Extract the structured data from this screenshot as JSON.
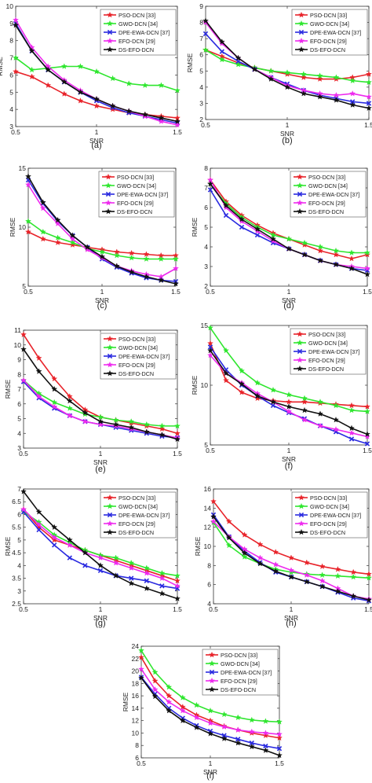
{
  "legend_names": [
    "PSO-DCN [33]",
    "GWO-DCN [34]",
    "DPE-EWA-DCN [37]",
    "EFO-DCN [29]",
    "DS-EFO-DCN"
  ],
  "colors": [
    "#e8232a",
    "#2ee62e",
    "#2a2ae0",
    "#ee2aee",
    "#111111"
  ],
  "markers": [
    "star",
    "star",
    "cross",
    "star",
    "star"
  ],
  "chart_data": [
    {
      "type": "line",
      "caption": "(a)",
      "xlabel": "SNR",
      "ylabel": "RMSE",
      "xlim": [
        0.5,
        1.5
      ],
      "ylim": [
        3,
        10
      ],
      "xticks": [
        0.5,
        1,
        1.5
      ],
      "yticks": [
        3,
        4,
        5,
        6,
        7,
        8,
        9,
        10
      ],
      "x": [
        0.5,
        0.6,
        0.7,
        0.8,
        0.9,
        1.0,
        1.1,
        1.2,
        1.3,
        1.4,
        1.5
      ],
      "series": [
        {
          "name": "PSO-DCN [33]",
          "values": [
            6.2,
            5.9,
            5.4,
            4.9,
            4.5,
            4.2,
            4.0,
            3.8,
            3.7,
            3.6,
            3.5
          ]
        },
        {
          "name": "GWO-DCN [34]",
          "values": [
            7.0,
            6.3,
            6.4,
            6.5,
            6.5,
            6.2,
            5.8,
            5.5,
            5.4,
            5.4,
            5.1
          ]
        },
        {
          "name": "DPE-EWA-DCN [37]",
          "values": [
            9.0,
            7.4,
            6.3,
            5.6,
            5.0,
            4.5,
            4.1,
            3.8,
            3.6,
            3.4,
            3.2
          ]
        },
        {
          "name": "EFO-DCN [29]",
          "values": [
            9.2,
            7.6,
            6.5,
            5.7,
            5.1,
            4.6,
            4.2,
            3.9,
            3.6,
            3.3,
            3.1
          ]
        },
        {
          "name": "DS-EFO-DCN",
          "values": [
            8.9,
            7.4,
            6.3,
            5.6,
            5.0,
            4.6,
            4.2,
            3.9,
            3.7,
            3.5,
            3.3
          ]
        }
      ]
    },
    {
      "type": "line",
      "caption": "(b)",
      "xlabel": "SNR",
      "ylabel": "RMSE",
      "xlim": [
        0.5,
        1.5
      ],
      "ylim": [
        2,
        9
      ],
      "xticks": [
        0.5,
        1,
        1.5
      ],
      "yticks": [
        2,
        3,
        4,
        5,
        6,
        7,
        8,
        9
      ],
      "x": [
        0.5,
        0.6,
        0.7,
        0.8,
        0.9,
        1.0,
        1.1,
        1.2,
        1.3,
        1.4,
        1.5
      ],
      "series": [
        {
          "name": "PSO-DCN [33]",
          "values": [
            6.3,
            5.9,
            5.5,
            5.2,
            5.0,
            4.8,
            4.6,
            4.5,
            4.5,
            4.6,
            4.8
          ]
        },
        {
          "name": "GWO-DCN [34]",
          "values": [
            6.3,
            5.7,
            5.4,
            5.2,
            5.0,
            4.9,
            4.8,
            4.7,
            4.6,
            4.4,
            4.3
          ]
        },
        {
          "name": "DPE-EWA-DCN [37]",
          "values": [
            7.3,
            6.2,
            5.6,
            5.1,
            4.6,
            4.2,
            3.8,
            3.5,
            3.3,
            3.1,
            3.0
          ]
        },
        {
          "name": "EFO-DCN [29]",
          "values": [
            8.0,
            6.7,
            5.8,
            5.1,
            4.6,
            4.1,
            3.8,
            3.6,
            3.5,
            3.6,
            3.4
          ]
        },
        {
          "name": "DS-EFO-DCN",
          "values": [
            8.1,
            6.8,
            5.8,
            5.1,
            4.5,
            4.0,
            3.6,
            3.4,
            3.2,
            2.9,
            2.7
          ]
        }
      ]
    },
    {
      "type": "line",
      "caption": "(c)",
      "xlabel": "SNR",
      "ylabel": "RMSE",
      "xlim": [
        0.5,
        1.5
      ],
      "ylim": [
        5,
        15
      ],
      "xticks": [
        0.5,
        1,
        1.5
      ],
      "yticks": [
        5,
        10,
        15
      ],
      "x": [
        0.5,
        0.6,
        0.7,
        0.8,
        0.9,
        1.0,
        1.1,
        1.2,
        1.3,
        1.4,
        1.5
      ],
      "series": [
        {
          "name": "PSO-DCN [33]",
          "values": [
            9.6,
            9.0,
            8.7,
            8.5,
            8.3,
            8.1,
            7.9,
            7.8,
            7.7,
            7.6,
            7.6
          ]
        },
        {
          "name": "GWO-DCN [34]",
          "values": [
            10.5,
            9.6,
            9.1,
            8.7,
            8.2,
            7.9,
            7.6,
            7.4,
            7.3,
            7.3,
            7.3
          ]
        },
        {
          "name": "DPE-EWA-DCN [37]",
          "values": [
            14.0,
            12.0,
            10.5,
            9.3,
            8.3,
            7.3,
            6.6,
            6.1,
            5.7,
            5.5,
            5.4
          ]
        },
        {
          "name": "EFO-DCN [29]",
          "values": [
            13.6,
            11.6,
            10.3,
            9.0,
            8.1,
            7.4,
            6.7,
            6.3,
            6.0,
            5.8,
            6.5
          ]
        },
        {
          "name": "DS-EFO-DCN",
          "values": [
            14.3,
            12.1,
            10.6,
            9.3,
            8.3,
            7.5,
            6.7,
            6.2,
            5.8,
            5.5,
            5.2
          ]
        }
      ]
    },
    {
      "type": "line",
      "caption": "(d)",
      "xlabel": "SNR",
      "ylabel": "RMSE",
      "xlim": [
        0.5,
        1.5
      ],
      "ylim": [
        2,
        8
      ],
      "xticks": [
        0.5,
        1,
        1.5
      ],
      "yticks": [
        2,
        3,
        4,
        5,
        6,
        7,
        8
      ],
      "x": [
        0.5,
        0.6,
        0.7,
        0.8,
        0.9,
        1.0,
        1.1,
        1.2,
        1.3,
        1.4,
        1.5
      ],
      "series": [
        {
          "name": "PSO-DCN [33]",
          "values": [
            7.4,
            6.3,
            5.6,
            5.1,
            4.7,
            4.4,
            4.1,
            3.8,
            3.6,
            3.4,
            3.6
          ]
        },
        {
          "name": "GWO-DCN [34]",
          "values": [
            7.2,
            6.2,
            5.5,
            5.0,
            4.6,
            4.4,
            4.2,
            4.0,
            3.8,
            3.7,
            3.7
          ]
        },
        {
          "name": "DPE-EWA-DCN [37]",
          "values": [
            6.9,
            5.6,
            5.0,
            4.6,
            4.2,
            3.9,
            3.6,
            3.3,
            3.1,
            2.9,
            2.8
          ]
        },
        {
          "name": "EFO-DCN [29]",
          "values": [
            7.4,
            6.0,
            5.3,
            4.8,
            4.3,
            3.9,
            3.6,
            3.3,
            3.1,
            3.0,
            2.9
          ]
        },
        {
          "name": "DS-EFO-DCN",
          "values": [
            7.2,
            6.1,
            5.4,
            4.9,
            4.4,
            3.9,
            3.6,
            3.3,
            3.1,
            2.9,
            2.6
          ]
        }
      ]
    },
    {
      "type": "line",
      "caption": "(e)",
      "xlabel": "SNR",
      "ylabel": "RMSE",
      "xlim": [
        0.5,
        1.5
      ],
      "ylim": [
        3,
        11
      ],
      "xticks": [
        0.5,
        1,
        1.5
      ],
      "yticks": [
        3,
        4,
        5,
        6,
        7,
        8,
        9,
        10,
        11
      ],
      "x": [
        0.5,
        0.6,
        0.7,
        0.8,
        0.9,
        1.0,
        1.1,
        1.2,
        1.3,
        1.4,
        1.5
      ],
      "series": [
        {
          "name": "PSO-DCN [33]",
          "values": [
            10.7,
            9.1,
            7.7,
            6.5,
            5.6,
            5.1,
            4.9,
            4.7,
            4.5,
            4.3,
            4.0
          ]
        },
        {
          "name": "GWO-DCN [34]",
          "values": [
            7.6,
            6.7,
            6.1,
            5.7,
            5.3,
            5.1,
            4.9,
            4.8,
            4.6,
            4.5,
            4.5
          ]
        },
        {
          "name": "DPE-EWA-DCN [37]",
          "values": [
            7.5,
            6.4,
            5.7,
            5.2,
            4.8,
            4.6,
            4.4,
            4.2,
            4.0,
            3.8,
            3.7
          ]
        },
        {
          "name": "EFO-DCN [29]",
          "values": [
            7.6,
            6.5,
            5.8,
            5.2,
            4.8,
            4.6,
            4.5,
            4.3,
            4.1,
            3.9,
            3.7
          ]
        },
        {
          "name": "DS-EFO-DCN",
          "values": [
            9.7,
            8.2,
            7.0,
            6.2,
            5.4,
            4.8,
            4.6,
            4.4,
            4.1,
            3.9,
            3.6
          ]
        }
      ]
    },
    {
      "type": "line",
      "caption": "(f)",
      "xlabel": "SNR",
      "ylabel": "RMSE",
      "xlim": [
        0.5,
        1.5
      ],
      "ylim": [
        5,
        15
      ],
      "xticks": [
        0.5,
        1,
        1.5
      ],
      "yticks": [
        5,
        10,
        15
      ],
      "x": [
        0.5,
        0.6,
        0.7,
        0.8,
        0.9,
        1.0,
        1.1,
        1.2,
        1.3,
        1.4,
        1.5
      ],
      "series": [
        {
          "name": "PSO-DCN [33]",
          "values": [
            13.5,
            10.4,
            9.4,
            8.9,
            8.7,
            8.6,
            8.6,
            8.5,
            8.4,
            8.3,
            8.2
          ]
        },
        {
          "name": "GWO-DCN [34]",
          "values": [
            14.8,
            12.9,
            11.2,
            10.2,
            9.6,
            9.2,
            8.9,
            8.6,
            8.3,
            7.9,
            7.8
          ]
        },
        {
          "name": "DPE-EWA-DCN [37]",
          "values": [
            13.2,
            11.3,
            10.0,
            9.1,
            8.3,
            7.7,
            7.2,
            6.6,
            6.1,
            5.5,
            5.1
          ]
        },
        {
          "name": "EFO-DCN [29]",
          "values": [
            12.5,
            11.0,
            10.2,
            9.3,
            8.6,
            7.8,
            7.1,
            6.6,
            6.3,
            6.0,
            5.7
          ]
        },
        {
          "name": "DS-EFO-DCN",
          "values": [
            12.9,
            11.0,
            10.1,
            9.1,
            8.6,
            8.2,
            7.9,
            7.6,
            7.1,
            6.4,
            5.9
          ]
        }
      ]
    },
    {
      "type": "line",
      "caption": "(g)",
      "xlabel": "SNR",
      "ylabel": "RMSE",
      "xlim": [
        0.5,
        1.5
      ],
      "ylim": [
        2.5,
        7
      ],
      "xticks": [
        0.5,
        1,
        1.5
      ],
      "yticks": [
        2.5,
        3,
        3.5,
        4,
        4.5,
        5,
        5.5,
        6,
        6.5,
        7
      ],
      "x": [
        0.5,
        0.6,
        0.7,
        0.8,
        0.9,
        1.0,
        1.1,
        1.2,
        1.3,
        1.4,
        1.5
      ],
      "series": [
        {
          "name": "PSO-DCN [33]",
          "values": [
            6.2,
            5.5,
            5.0,
            4.8,
            4.6,
            4.4,
            4.2,
            4.0,
            3.8,
            3.6,
            3.4
          ]
        },
        {
          "name": "GWO-DCN [34]",
          "values": [
            6.1,
            5.7,
            5.2,
            4.9,
            4.6,
            4.4,
            4.3,
            4.1,
            3.9,
            3.7,
            3.6
          ]
        },
        {
          "name": "DPE-EWA-DCN [37]",
          "values": [
            6.1,
            5.4,
            4.8,
            4.3,
            4.0,
            3.8,
            3.6,
            3.5,
            3.4,
            3.2,
            3.1
          ]
        },
        {
          "name": "EFO-DCN [29]",
          "values": [
            6.2,
            5.6,
            5.1,
            4.8,
            4.5,
            4.3,
            4.1,
            3.9,
            3.7,
            3.5,
            3.2
          ]
        },
        {
          "name": "DS-EFO-DCN",
          "values": [
            6.9,
            6.1,
            5.5,
            5.0,
            4.5,
            4.0,
            3.6,
            3.3,
            3.1,
            2.9,
            2.7
          ]
        }
      ]
    },
    {
      "type": "line",
      "caption": "(h)",
      "xlabel": "SNR",
      "ylabel": "RMSE",
      "xlim": [
        0.5,
        1.5
      ],
      "ylim": [
        4,
        16
      ],
      "xticks": [
        0.5,
        1,
        1.5
      ],
      "yticks": [
        4,
        6,
        8,
        10,
        12,
        14,
        16
      ],
      "x": [
        0.5,
        0.6,
        0.7,
        0.8,
        0.9,
        1.0,
        1.1,
        1.2,
        1.3,
        1.4,
        1.5
      ],
      "series": [
        {
          "name": "PSO-DCN [33]",
          "values": [
            14.7,
            12.6,
            11.2,
            10.2,
            9.4,
            8.8,
            8.3,
            7.9,
            7.6,
            7.3,
            7.1
          ]
        },
        {
          "name": "GWO-DCN [34]",
          "values": [
            12.5,
            10.1,
            8.9,
            8.2,
            7.6,
            7.3,
            7.1,
            7.0,
            6.9,
            6.8,
            6.7
          ]
        },
        {
          "name": "DPE-EWA-DCN [37]",
          "values": [
            13.3,
            11.0,
            9.5,
            8.3,
            7.3,
            6.8,
            6.3,
            5.8,
            5.2,
            4.6,
            4.3
          ]
        },
        {
          "name": "EFO-DCN [29]",
          "values": [
            12.6,
            11.0,
            9.7,
            8.8,
            8.1,
            7.5,
            7.0,
            6.4,
            5.6,
            4.8,
            4.5
          ]
        },
        {
          "name": "DS-EFO-DCN",
          "values": [
            13.1,
            10.9,
            9.3,
            8.2,
            7.4,
            6.8,
            6.3,
            5.8,
            5.3,
            4.8,
            4.4
          ]
        }
      ]
    },
    {
      "type": "line",
      "caption": "(i)",
      "xlabel": "SNR",
      "ylabel": "RMSE",
      "xlim": [
        0.5,
        1.5
      ],
      "ylim": [
        6,
        24
      ],
      "xticks": [
        0.5,
        1,
        1.5
      ],
      "yticks": [
        6,
        8,
        10,
        12,
        14,
        16,
        18,
        20,
        22,
        24
      ],
      "x": [
        0.5,
        0.6,
        0.7,
        0.8,
        0.9,
        1.0,
        1.1,
        1.2,
        1.3,
        1.4,
        1.5
      ],
      "series": [
        {
          "name": "PSO-DCN [33]",
          "values": [
            22.2,
            18.4,
            16.0,
            14.2,
            12.9,
            12.0,
            11.1,
            10.5,
            10.0,
            9.6,
            9.2
          ]
        },
        {
          "name": "GWO-DCN [34]",
          "values": [
            23.3,
            19.8,
            17.4,
            15.7,
            14.5,
            13.6,
            13.0,
            12.5,
            12.1,
            11.9,
            11.8
          ]
        },
        {
          "name": "DPE-EWA-DCN [37]",
          "values": [
            19.0,
            16.3,
            14.0,
            12.4,
            11.2,
            10.3,
            9.6,
            9.0,
            8.4,
            7.9,
            7.5
          ]
        },
        {
          "name": "EFO-DCN [29]",
          "values": [
            20.3,
            17.0,
            15.0,
            13.6,
            12.5,
            11.6,
            11.0,
            10.5,
            10.2,
            10.0,
            9.8
          ]
        },
        {
          "name": "DS-EFO-DCN",
          "values": [
            18.9,
            15.9,
            13.6,
            12.0,
            10.9,
            9.9,
            9.1,
            8.4,
            7.8,
            7.2,
            6.4
          ]
        }
      ]
    }
  ]
}
